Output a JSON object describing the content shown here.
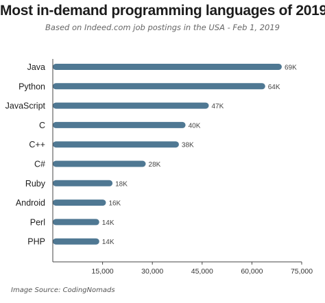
{
  "chart_data": {
    "type": "bar",
    "orientation": "horizontal",
    "title": "Most in-demand programming languages of 2019",
    "subtitle": "Based on Indeed.com job postings in the USA - Feb 1, 2019",
    "categories": [
      "Java",
      "Python",
      "JavaScript",
      "C",
      "C++",
      "C#",
      "Ruby",
      "Android",
      "Perl",
      "PHP"
    ],
    "values": [
      69000,
      64000,
      47000,
      40000,
      38000,
      28000,
      18000,
      16000,
      14000,
      14000
    ],
    "data_labels": [
      "69K",
      "64K",
      "47K",
      "40K",
      "38K",
      "28K",
      "18K",
      "16K",
      "14K",
      "14K"
    ],
    "xlim": [
      0,
      75000
    ],
    "xticks": [
      15000,
      30000,
      45000,
      60000,
      75000
    ],
    "xtick_labels": [
      "15,000",
      "30,000",
      "45,000",
      "60,000",
      "75,000"
    ],
    "xlabel": "",
    "ylabel": "",
    "grid": false,
    "legend": "none",
    "bar_color": "#4f7893",
    "source": "Image Source: CodingNomads"
  }
}
